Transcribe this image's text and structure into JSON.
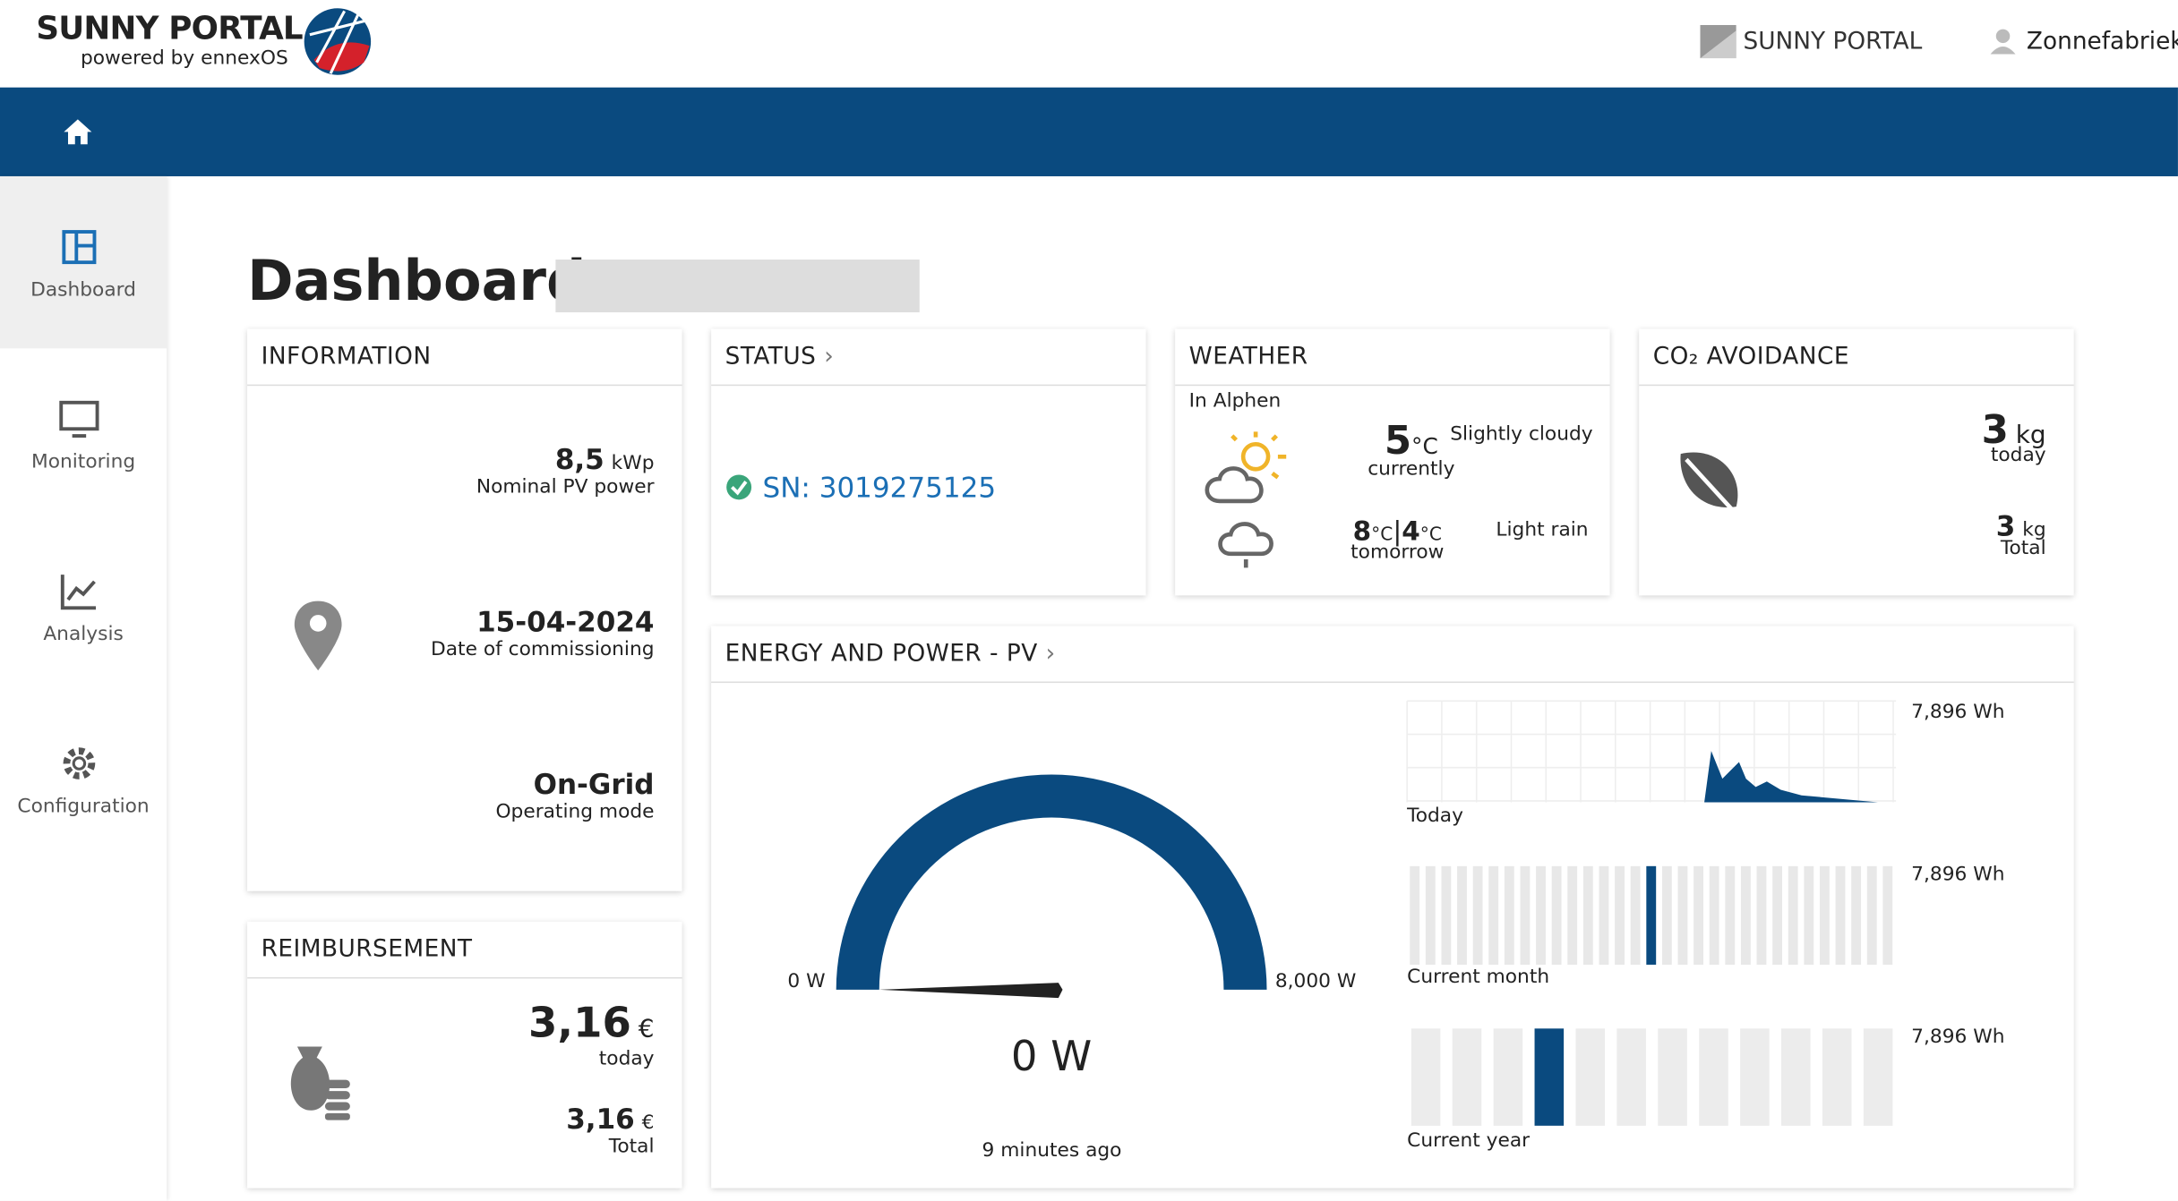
{
  "header": {
    "logo_title": "SUNNY PORTAL",
    "logo_subtitle": "powered by ennexOS",
    "portal_menu": "SUNNY PORTAL",
    "user": "Zonnefabriek r"
  },
  "sidebar": {
    "items": [
      "Dashboard",
      "Monitoring",
      "Analysis",
      "Configuration"
    ]
  },
  "page": {
    "title": "Dashboard"
  },
  "information": {
    "title": "INFORMATION",
    "power_value": "8,5",
    "power_unit": "kWp",
    "power_label": "Nominal PV power",
    "date_value": "15-04-2024",
    "date_label": "Date of commissioning",
    "mode_value": "On-Grid",
    "mode_label": "Operating mode"
  },
  "status": {
    "title": "STATUS",
    "serial": "SN: 3019275125"
  },
  "weather": {
    "title": "WEATHER",
    "location": "In Alphen",
    "current_temp": "5",
    "current_unit": "°C",
    "current_label": "currently",
    "current_desc": "Slightly cloudy",
    "tomorrow_high": "8",
    "tomorrow_high_unit": "°C",
    "separator": "|",
    "tomorrow_low": "4",
    "tomorrow_low_unit": "°C",
    "tomorrow_label": "tomorrow",
    "tomorrow_desc": "Light rain"
  },
  "co2": {
    "title": "CO₂ AVOIDANCE",
    "today_value": "3",
    "today_unit": "kg",
    "today_label": "today",
    "total_value": "3",
    "total_unit": "kg",
    "total_label": "Total"
  },
  "reimbursement": {
    "title": "REIMBURSEMENT",
    "today_value": "3,16",
    "today_unit": "€",
    "today_label": "today",
    "total_value": "3,16",
    "total_unit": "€",
    "total_label": "Total"
  },
  "energy": {
    "title": "ENERGY AND POWER - PV",
    "gauge_min": "0 W",
    "gauge_max": "8,000 W",
    "gauge_value": "0 W",
    "updated": "9 minutes ago",
    "today_max": "7,896 Wh",
    "today_label": "Today",
    "month_max": "7,896 Wh",
    "month_label": "Current month",
    "year_max": "7,896 Wh",
    "year_label": "Current year"
  }
}
